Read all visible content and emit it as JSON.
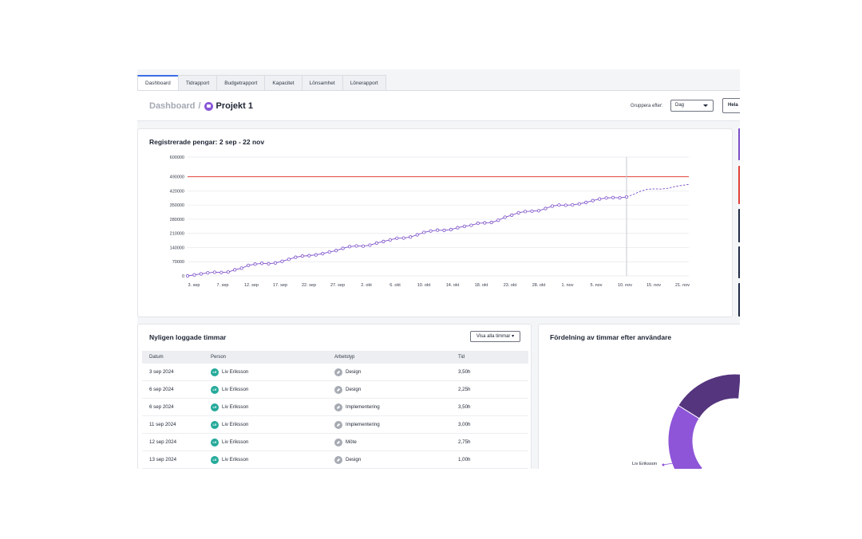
{
  "tabs": [
    "Dashboard",
    "Tidrapport",
    "Budgetrapport",
    "Kapacitet",
    "Lönsamhet",
    "Lönerapport"
  ],
  "active_tab": "Dashboard",
  "header": {
    "breadcrumb_root": "Dashboard",
    "separator": "/",
    "project_name": "Projekt 1",
    "group_by_label": "Gruppera efter:",
    "group_by_value": "Dag",
    "period_button": "Hela"
  },
  "colors": {
    "accent": "#3b6ee8",
    "line": "#7b4fc9",
    "budget_line": "#e0413a",
    "avatar": "#24a99a",
    "donut_light": "#8e55d8",
    "donut_dark": "#55357e"
  },
  "side_stripes": [
    "#7b4fc9",
    "#e0413a",
    "#1d2b45",
    "#1d2b45",
    "#1d2b45"
  ],
  "chart_data": {
    "type": "line",
    "title": "Registrerade pengar: 2 sep - 22 nov",
    "y_ticks": [
      "600000",
      "490000",
      "420000",
      "350000",
      "280000",
      "210000",
      "140000",
      "70000",
      "0"
    ],
    "x_ticks": [
      "3. sep",
      "7. sep",
      "12. sep",
      "17. sep",
      "22. sep",
      "27. sep",
      "2. okt",
      "6. okt",
      "10. okt",
      "14. okt",
      "18. okt",
      "23. okt",
      "28. okt",
      "1. nov",
      "5. nov",
      "10. nov",
      "15. nov",
      "21. nov"
    ],
    "budget_value": 490000,
    "today": "10. nov",
    "grid": true,
    "series": [
      {
        "values": [
          0,
          5000,
          10000,
          15000,
          18000,
          17000,
          19000,
          30000,
          38000,
          52000,
          58000,
          62000,
          60000,
          64000,
          72000,
          82000,
          92000,
          98000,
          100000,
          104000,
          110000,
          118000,
          125000,
          136000,
          145000,
          148000,
          147000,
          152000,
          162000,
          170000,
          178000,
          186000,
          187000,
          192000,
          203000,
          215000,
          222000,
          226000,
          225000,
          229000,
          238000,
          245000,
          250000,
          260000,
          262000,
          264000,
          275000,
          290000,
          300000,
          312000,
          318000,
          320000,
          322000,
          333000,
          345000,
          350000,
          349000,
          351000,
          356000,
          363000,
          372000,
          380000,
          385000,
          387000,
          386000,
          390000
        ]
      },
      {
        "dashed": true,
        "values": [
          390000,
          403000,
          418000,
          428000,
          430000,
          429000,
          433000,
          442000,
          447000,
          452000
        ]
      }
    ]
  },
  "recent": {
    "title": "Nyligen loggade timmar",
    "view_all": "Visa alla timmar",
    "columns": [
      "Datum",
      "Person",
      "Arbetstyp",
      "Tid"
    ],
    "rows": [
      {
        "date": "3 sep 2024",
        "initials": "LE",
        "person": "Liv Eriksson",
        "type": "Design",
        "time": "3,50h"
      },
      {
        "date": "6 sep 2024",
        "initials": "LE",
        "person": "Liv Eriksson",
        "type": "Design",
        "time": "2,25h"
      },
      {
        "date": "6 sep 2024",
        "initials": "LE",
        "person": "Liv Eriksson",
        "type": "Implementering",
        "time": "3,50h"
      },
      {
        "date": "11 sep 2024",
        "initials": "LE",
        "person": "Liv Eriksson",
        "type": "Implementering",
        "time": "3,00h"
      },
      {
        "date": "12 sep 2024",
        "initials": "LE",
        "person": "Liv Eriksson",
        "type": "Möte",
        "time": "2,75h"
      },
      {
        "date": "13 sep 2024",
        "initials": "LE",
        "person": "Liv Eriksson",
        "type": "Design",
        "time": "1,00h"
      }
    ]
  },
  "distribution": {
    "title": "Fördelning av timmar efter användare",
    "legend_label": "Liv Eriksson"
  }
}
